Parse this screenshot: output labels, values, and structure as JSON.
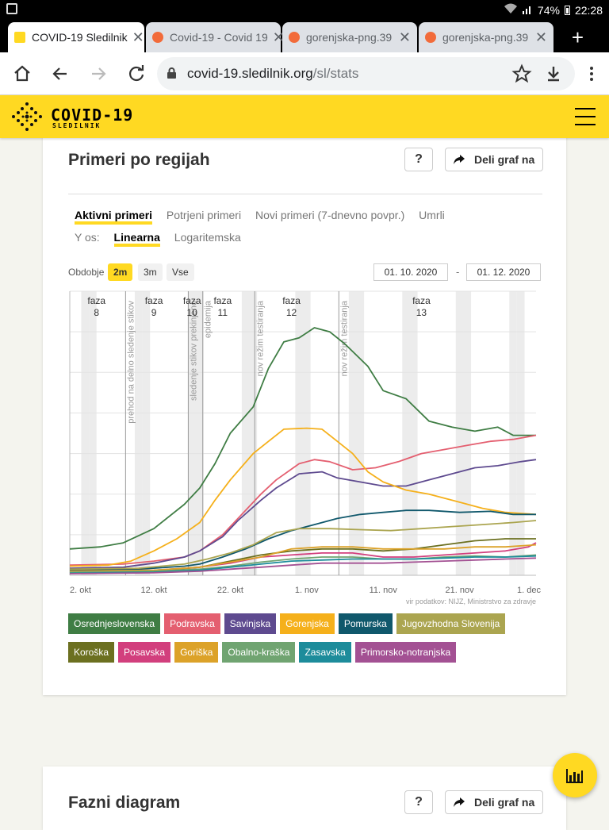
{
  "status_bar": {
    "battery": "74%",
    "time": "22:28"
  },
  "browser": {
    "tabs": [
      {
        "title": "COVID-19 Sledilnik",
        "active": true
      },
      {
        "title": "Covid-19 - Covid 19",
        "active": false
      },
      {
        "title": "gorenjska-png.39",
        "active": false
      },
      {
        "title": "gorenjska-png.39",
        "active": false
      }
    ],
    "url_host": "covid-19.sledilnik.org",
    "url_path": "/sl/stats"
  },
  "site": {
    "logo_title": "COVID-19",
    "logo_subtitle": "SLEDILNIK"
  },
  "card": {
    "title": "Primeri po regijah",
    "help_label": "?",
    "share_label": "Deli graf na",
    "metric_tabs": [
      "Aktivni primeri",
      "Potrjeni primeri",
      "Novi primeri (7-dnevno povpr.)",
      "Umrli"
    ],
    "yaxis_label": "Y os:",
    "yaxis_options": [
      "Linearna",
      "Logaritemska"
    ],
    "period_label": "Obdobje",
    "periods": [
      "2m",
      "3m",
      "Vse"
    ],
    "date_from": "01. 10. 2020",
    "date_to": "01. 12. 2020",
    "date_sep": "-"
  },
  "card2": {
    "title": "Fazni diagram",
    "help_label": "?",
    "share_label": "Deli graf na"
  },
  "chart_data": {
    "type": "line",
    "x_ticks": [
      "2. okt",
      "12. okt",
      "22. okt",
      "1. nov",
      "11. nov",
      "21. nov",
      "1. dec"
    ],
    "source": "vir podatkov: NIJZ, Ministrstvo za zdravje",
    "x_range": [
      1,
      62
    ],
    "y_range": [
      0,
      14000
    ],
    "grid": true,
    "phases": [
      {
        "label": "faza",
        "num": "8",
        "day": 4.5
      },
      {
        "label": "faza",
        "num": "9",
        "day": 12
      },
      {
        "label": "faza",
        "num": "10",
        "day": 17
      },
      {
        "label": "faza",
        "num": "11",
        "day": 21
      },
      {
        "label": "faza",
        "num": "12",
        "day": 30
      },
      {
        "label": "faza",
        "num": "13",
        "day": 47
      }
    ],
    "events": [
      {
        "day": 8.3,
        "text": "prehod na delno sledenje stikov"
      },
      {
        "day": 16.5,
        "text": "sledenje stikov prekinjeno"
      },
      {
        "day": 18.4,
        "text": "epidemija"
      },
      {
        "day": 25.2,
        "text": "nov režim testiranja"
      },
      {
        "day": 36.2,
        "text": "nov režim testiranja"
      }
    ],
    "weekend_days": [
      3,
      4,
      10,
      11,
      17,
      18,
      24,
      25,
      31,
      32,
      38,
      39,
      45,
      46,
      52,
      53,
      59,
      60
    ],
    "series": [
      {
        "name": "Osrednjeslovenska",
        "color": "#3f7d44",
        "values": [
          [
            1,
            1300
          ],
          [
            5,
            1400
          ],
          [
            8,
            1600
          ],
          [
            12,
            2300
          ],
          [
            16,
            3500
          ],
          [
            18,
            4300
          ],
          [
            20,
            5500
          ],
          [
            22,
            7000
          ],
          [
            25,
            8300
          ],
          [
            27,
            10200
          ],
          [
            29,
            11500
          ],
          [
            31,
            11700
          ],
          [
            33,
            12200
          ],
          [
            35,
            12000
          ],
          [
            37,
            11400
          ],
          [
            40,
            10300
          ],
          [
            42,
            9100
          ],
          [
            45,
            8700
          ],
          [
            48,
            7600
          ],
          [
            51,
            7300
          ],
          [
            54,
            7100
          ],
          [
            57,
            7300
          ],
          [
            59,
            6900
          ],
          [
            62,
            6900
          ]
        ]
      },
      {
        "name": "Podravska",
        "color": "#e45f70",
        "values": [
          [
            1,
            500
          ],
          [
            8,
            550
          ],
          [
            12,
            700
          ],
          [
            16,
            900
          ],
          [
            18,
            1200
          ],
          [
            21,
            2000
          ],
          [
            23,
            2800
          ],
          [
            26,
            4000
          ],
          [
            28,
            4700
          ],
          [
            31,
            5500
          ],
          [
            33,
            5700
          ],
          [
            35,
            5600
          ],
          [
            38,
            5200
          ],
          [
            41,
            5300
          ],
          [
            44,
            5600
          ],
          [
            47,
            6000
          ],
          [
            50,
            6200
          ],
          [
            53,
            6400
          ],
          [
            56,
            6600
          ],
          [
            59,
            6700
          ],
          [
            62,
            6900
          ]
        ]
      },
      {
        "name": "Savinjska",
        "color": "#5e4a8f",
        "values": [
          [
            1,
            350
          ],
          [
            8,
            400
          ],
          [
            12,
            600
          ],
          [
            16,
            900
          ],
          [
            18,
            1200
          ],
          [
            21,
            1900
          ],
          [
            23,
            2700
          ],
          [
            26,
            3700
          ],
          [
            28,
            4300
          ],
          [
            31,
            5000
          ],
          [
            34,
            5100
          ],
          [
            36,
            4800
          ],
          [
            39,
            4600
          ],
          [
            42,
            4400
          ],
          [
            45,
            4400
          ],
          [
            48,
            4700
          ],
          [
            51,
            5000
          ],
          [
            54,
            5300
          ],
          [
            57,
            5400
          ],
          [
            60,
            5600
          ],
          [
            62,
            5700
          ]
        ]
      },
      {
        "name": "Gorenjska",
        "color": "#f5b01b",
        "values": [
          [
            1,
            450
          ],
          [
            6,
            500
          ],
          [
            9,
            700
          ],
          [
            12,
            1200
          ],
          [
            15,
            1800
          ],
          [
            18,
            2600
          ],
          [
            20,
            3700
          ],
          [
            22,
            4700
          ],
          [
            25,
            6000
          ],
          [
            27,
            6600
          ],
          [
            29,
            7200
          ],
          [
            32,
            7250
          ],
          [
            34,
            7200
          ],
          [
            36,
            6600
          ],
          [
            38,
            6000
          ],
          [
            40,
            5100
          ],
          [
            42,
            4600
          ],
          [
            45,
            4200
          ],
          [
            48,
            4000
          ],
          [
            52,
            3600
          ],
          [
            55,
            3300
          ],
          [
            58,
            3100
          ],
          [
            62,
            3000
          ]
        ]
      },
      {
        "name": "Pomurska",
        "color": "#10586c",
        "values": [
          [
            1,
            250
          ],
          [
            10,
            300
          ],
          [
            16,
            450
          ],
          [
            18,
            550
          ],
          [
            21,
            900
          ],
          [
            24,
            1300
          ],
          [
            27,
            1800
          ],
          [
            30,
            2200
          ],
          [
            33,
            2500
          ],
          [
            36,
            2800
          ],
          [
            39,
            3000
          ],
          [
            42,
            3100
          ],
          [
            45,
            3200
          ],
          [
            48,
            3200
          ],
          [
            52,
            3100
          ],
          [
            56,
            3150
          ],
          [
            59,
            3000
          ],
          [
            62,
            3000
          ]
        ]
      },
      {
        "name": "Jugovzhodna Slovenija",
        "color": "#aba550",
        "values": [
          [
            1,
            300
          ],
          [
            10,
            350
          ],
          [
            16,
            550
          ],
          [
            19,
            800
          ],
          [
            22,
            1100
          ],
          [
            25,
            1500
          ],
          [
            28,
            2100
          ],
          [
            31,
            2300
          ],
          [
            35,
            2300
          ],
          [
            39,
            2250
          ],
          [
            43,
            2200
          ],
          [
            47,
            2300
          ],
          [
            51,
            2400
          ],
          [
            55,
            2500
          ],
          [
            59,
            2600
          ],
          [
            62,
            2700
          ]
        ]
      },
      {
        "name": "Koroška",
        "color": "#6c7020",
        "values": [
          [
            1,
            150
          ],
          [
            12,
            200
          ],
          [
            18,
            400
          ],
          [
            22,
            700
          ],
          [
            26,
            1000
          ],
          [
            30,
            1200
          ],
          [
            34,
            1300
          ],
          [
            38,
            1300
          ],
          [
            42,
            1200
          ],
          [
            46,
            1300
          ],
          [
            50,
            1500
          ],
          [
            54,
            1700
          ],
          [
            58,
            1800
          ],
          [
            62,
            1800
          ]
        ]
      },
      {
        "name": "Posavska",
        "color": "#d23f7d",
        "values": [
          [
            1,
            200
          ],
          [
            12,
            250
          ],
          [
            18,
            400
          ],
          [
            22,
            600
          ],
          [
            26,
            900
          ],
          [
            30,
            1000
          ],
          [
            34,
            1100
          ],
          [
            38,
            1100
          ],
          [
            42,
            900
          ],
          [
            46,
            900
          ],
          [
            50,
            1000
          ],
          [
            54,
            1100
          ],
          [
            58,
            1200
          ],
          [
            61,
            1400
          ],
          [
            62,
            1600
          ]
        ]
      },
      {
        "name": "Goriška",
        "color": "#dca229",
        "values": [
          [
            1,
            200
          ],
          [
            12,
            250
          ],
          [
            18,
            400
          ],
          [
            22,
            650
          ],
          [
            26,
            900
          ],
          [
            30,
            1300
          ],
          [
            34,
            1400
          ],
          [
            38,
            1400
          ],
          [
            42,
            1300
          ],
          [
            46,
            1300
          ],
          [
            50,
            1300
          ],
          [
            54,
            1400
          ],
          [
            58,
            1400
          ],
          [
            62,
            1500
          ]
        ]
      },
      {
        "name": "Obalno-kraška",
        "color": "#70a471",
        "values": [
          [
            1,
            150
          ],
          [
            12,
            200
          ],
          [
            18,
            300
          ],
          [
            22,
            450
          ],
          [
            26,
            650
          ],
          [
            30,
            800
          ],
          [
            34,
            900
          ],
          [
            38,
            900
          ],
          [
            42,
            800
          ],
          [
            46,
            800
          ],
          [
            50,
            900
          ],
          [
            54,
            950
          ],
          [
            58,
            900
          ],
          [
            62,
            1000
          ]
        ]
      },
      {
        "name": "Zasavska",
        "color": "#1d8c9b",
        "values": [
          [
            1,
            100
          ],
          [
            12,
            150
          ],
          [
            18,
            250
          ],
          [
            22,
            400
          ],
          [
            26,
            550
          ],
          [
            30,
            700
          ],
          [
            34,
            750
          ],
          [
            38,
            800
          ],
          [
            42,
            800
          ],
          [
            46,
            800
          ],
          [
            50,
            850
          ],
          [
            54,
            900
          ],
          [
            58,
            900
          ],
          [
            62,
            950
          ]
        ]
      },
      {
        "name": "Primorsko-notranjska",
        "color": "#a35193",
        "values": [
          [
            1,
            80
          ],
          [
            12,
            120
          ],
          [
            18,
            200
          ],
          [
            22,
            300
          ],
          [
            26,
            400
          ],
          [
            30,
            500
          ],
          [
            34,
            600
          ],
          [
            38,
            600
          ],
          [
            42,
            600
          ],
          [
            46,
            650
          ],
          [
            50,
            700
          ],
          [
            54,
            750
          ],
          [
            58,
            800
          ],
          [
            62,
            850
          ]
        ]
      }
    ]
  }
}
